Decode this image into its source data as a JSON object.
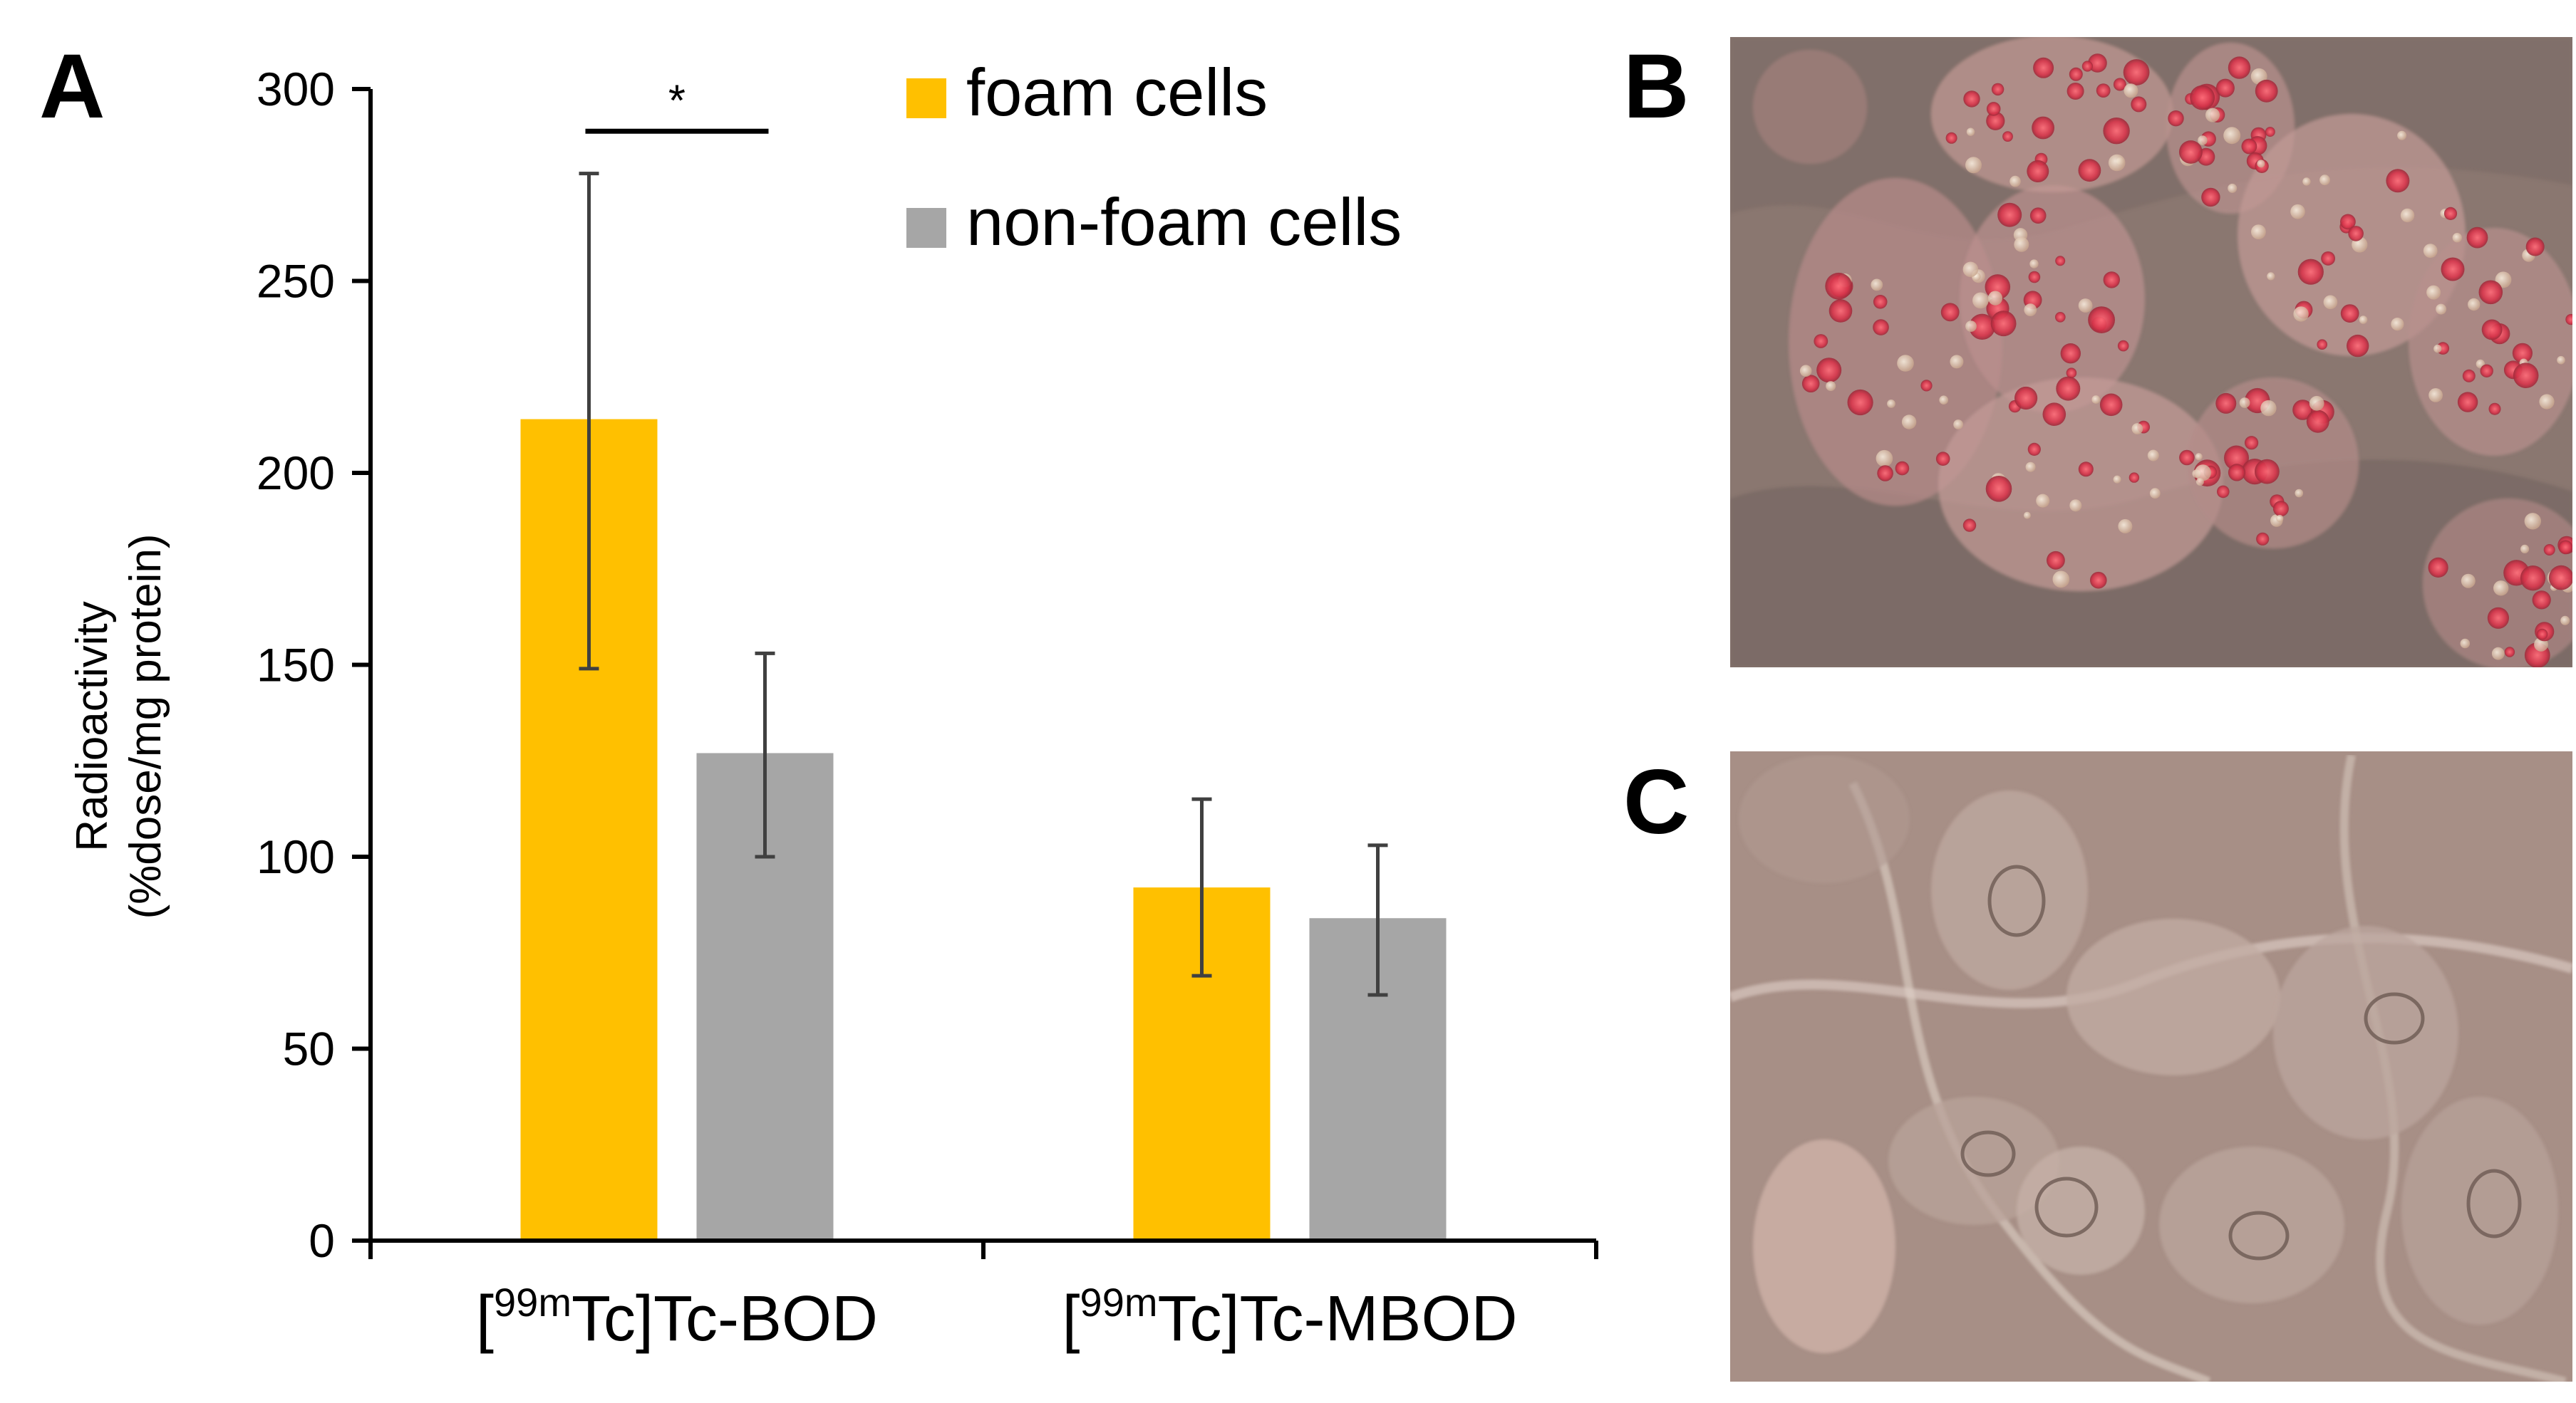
{
  "panels": {
    "a": "A",
    "b": "B",
    "c": "C"
  },
  "chart_data": {
    "type": "bar",
    "ylabel_line1": "Radioactivity",
    "ylabel_line2": "(%dose/mg protein)",
    "xlabel": "",
    "ylim": [
      0,
      300
    ],
    "yticks": [
      0,
      50,
      100,
      150,
      200,
      250,
      300
    ],
    "categories": [
      {
        "bracket_open": "[",
        "superscript": "99m",
        "rest": "Tc]Tc-BOD"
      },
      {
        "bracket_open": "[",
        "superscript": "99m",
        "rest": "Tc]Tc-MBOD"
      }
    ],
    "series": [
      {
        "name": "foam cells",
        "color": "#FFC000",
        "values": [
          214,
          92
        ],
        "error_low": [
          149,
          69
        ],
        "error_high": [
          278,
          115
        ]
      },
      {
        "name": "non-foam cells",
        "color": "#A6A6A6",
        "values": [
          127,
          84
        ],
        "error_low": [
          100,
          64
        ],
        "error_high": [
          153,
          103
        ]
      }
    ],
    "significance": {
      "label": "*",
      "category_index": 0
    },
    "legend_position": "top-right",
    "grid": false
  },
  "images": {
    "b": {
      "description_icon": "micrograph-oil-red-stained-foam-cells"
    },
    "c": {
      "description_icon": "micrograph-unstained-non-foam-cells"
    }
  }
}
